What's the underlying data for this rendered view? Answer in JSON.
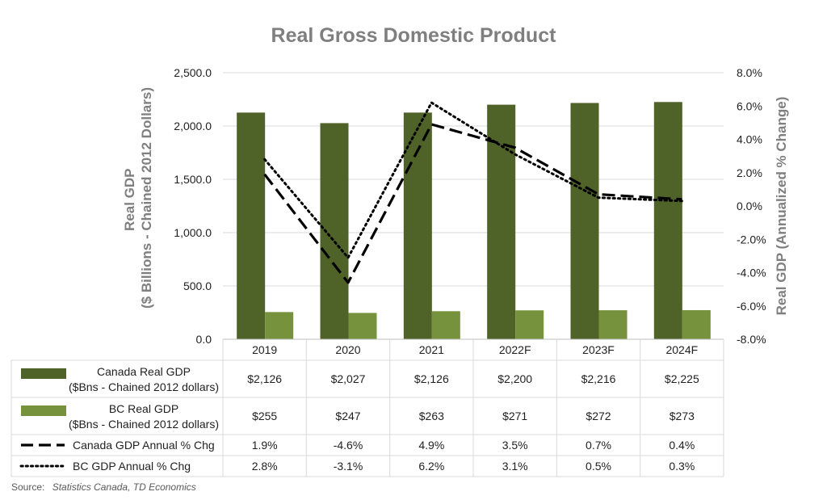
{
  "chart_data": {
    "type": "bar",
    "title": "Real Gross Domestic Product",
    "categories": [
      "2019",
      "2020",
      "2021",
      "2022F",
      "2023F",
      "2024F"
    ],
    "y_left": {
      "label_line1": "Real GDP",
      "label_line2": "($ Billions - Chained 2012 Dollars)",
      "range": [
        0,
        2500
      ],
      "ticks": [
        "0.0",
        "500.0",
        "1,000.0",
        "1,500.0",
        "2,000.0",
        "2,500.0"
      ],
      "tick_values": [
        0,
        500,
        1000,
        1500,
        2000,
        2500
      ]
    },
    "y_right": {
      "label": "Real GDP (Annualized % Change)",
      "range": [
        -8,
        8
      ],
      "ticks": [
        "-8.0%",
        "-6.0%",
        "-4.0%",
        "-2.0%",
        "0.0%",
        "2.0%",
        "4.0%",
        "6.0%",
        "8.0%"
      ],
      "tick_values": [
        -8,
        -6,
        -4,
        -2,
        0,
        2,
        4,
        6,
        8
      ]
    },
    "grid": "horizontal",
    "legend_placement": "data-table-left",
    "series": [
      {
        "name_line1": "Canada Real GDP",
        "name_line2": "($Bns - Chained 2012 dollars)",
        "type": "bar",
        "axis": "left",
        "color": "#4f6228",
        "values": [
          2126,
          2027,
          2126,
          2200,
          2216,
          2225
        ],
        "labels": [
          "$2,126",
          "$2,027",
          "$2,126",
          "$2,200",
          "$2,216",
          "$2,225"
        ]
      },
      {
        "name_line1": "BC Real GDP",
        "name_line2": "($Bns - Chained 2012 dollars)",
        "type": "bar",
        "axis": "left",
        "color": "#76923c",
        "values": [
          255,
          247,
          263,
          271,
          272,
          273
        ],
        "labels": [
          "$255",
          "$247",
          "$263",
          "$271",
          "$272",
          "$273"
        ]
      },
      {
        "name_line1": "Canada GDP Annual % Chg",
        "type": "line",
        "style": "dashed",
        "axis": "right",
        "color": "#000000",
        "values": [
          1.9,
          -4.6,
          4.9,
          3.5,
          0.7,
          0.4
        ],
        "labels": [
          "1.9%",
          "-4.6%",
          "4.9%",
          "3.5%",
          "0.7%",
          "0.4%"
        ]
      },
      {
        "name_line1": "BC GDP Annual % Chg",
        "type": "line",
        "style": "dotted",
        "axis": "right",
        "color": "#000000",
        "values": [
          2.8,
          -3.1,
          6.2,
          3.1,
          0.5,
          0.3
        ],
        "labels": [
          "2.8%",
          "-3.1%",
          "6.2%",
          "3.1%",
          "0.5%",
          "0.3%"
        ]
      }
    ]
  },
  "source": {
    "prefix": "Source:",
    "text": "Statistics Canada,  TD Economics"
  }
}
